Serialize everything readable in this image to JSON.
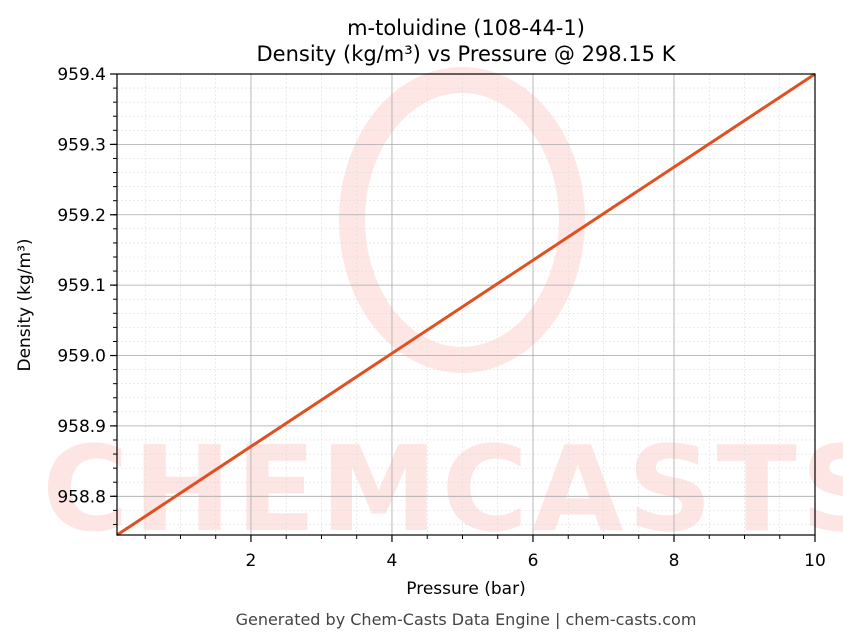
{
  "chart_data": {
    "type": "line",
    "title": "m-toluidine (108-44-1)",
    "subtitle": "Density (kg/m³) vs Pressure @ 298.15 K",
    "xlabel": "Pressure (bar)",
    "ylabel": "Density (kg/m³)",
    "xlim": [
      0.1,
      10
    ],
    "ylim": [
      958.745,
      959.4
    ],
    "xticks": [
      2,
      4,
      6,
      8,
      10
    ],
    "yticks": [
      958.8,
      958.9,
      959.0,
      959.1,
      959.2,
      959.3,
      959.4
    ],
    "xtick_labels": [
      "2",
      "4",
      "6",
      "8",
      "10"
    ],
    "ytick_labels": [
      "958.8",
      "958.9",
      "959.0",
      "959.1",
      "959.2",
      "959.3",
      "959.4"
    ],
    "grid": true,
    "series": [
      {
        "x": [
          0.1,
          10
        ],
        "y": [
          958.745,
          959.4
        ],
        "color": "#e05020"
      }
    ],
    "watermark": "CHEMCASTS",
    "footer": "Generated by Chem-Casts Data Engine | chem-casts.com"
  }
}
